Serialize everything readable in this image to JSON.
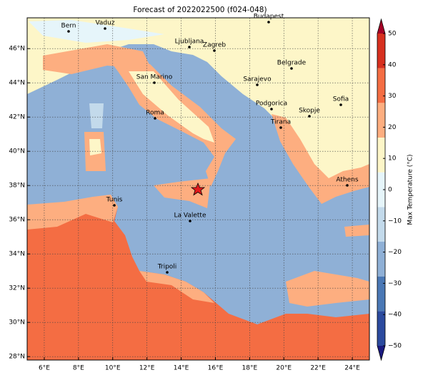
{
  "map": {
    "title": "Forecast of 2022022500 (f024-048)",
    "xlim": [
      5,
      25
    ],
    "ylim": [
      27.8,
      47.8
    ],
    "xticks": [
      {
        "value": 6,
        "label": "6°E"
      },
      {
        "value": 8,
        "label": "8°E"
      },
      {
        "value": 10,
        "label": "10°E"
      },
      {
        "value": 12,
        "label": "12°E"
      },
      {
        "value": 14,
        "label": "14°E"
      },
      {
        "value": 16,
        "label": "16°E"
      },
      {
        "value": 18,
        "label": "18°E"
      },
      {
        "value": 20,
        "label": "20°E"
      },
      {
        "value": 22,
        "label": "22°E"
      },
      {
        "value": 24,
        "label": "24°E"
      }
    ],
    "yticks": [
      {
        "value": 28,
        "label": "28°N"
      },
      {
        "value": 30,
        "label": "30°N"
      },
      {
        "value": 32,
        "label": "32°N"
      },
      {
        "value": 34,
        "label": "34°N"
      },
      {
        "value": 36,
        "label": "36°N"
      },
      {
        "value": 38,
        "label": "38°N"
      },
      {
        "value": 40,
        "label": "40°N"
      },
      {
        "value": 42,
        "label": "42°N"
      },
      {
        "value": 44,
        "label": "44°N"
      },
      {
        "value": 46,
        "label": "46°N"
      }
    ],
    "cities": [
      "Bern",
      "Vaduz",
      "Budapest",
      "Ljubljana",
      "Zagreb",
      "Belgrade",
      "San Marino",
      "Sarajevo",
      "Sofia",
      "Podgorica",
      "Skopje",
      "Roma",
      "Tirana",
      "Athens",
      "Tunis",
      "La Valette",
      "Tripoli"
    ],
    "colorbar": {
      "label": "Max Temperature (°C)",
      "lim": [
        -50,
        50
      ],
      "ticks": [
        50,
        40,
        30,
        20,
        10,
        0,
        {
          "value": -10,
          "label": "−10"
        },
        {
          "value": -20,
          "label": "−20"
        },
        {
          "value": -30,
          "label": "−30"
        },
        {
          "value": -40,
          "label": "−40"
        },
        {
          "value": -50,
          "label": "−50"
        }
      ],
      "colors": [
        "#1a1a80",
        "#2b4a9e",
        "#4a78b5",
        "#8fb0d6",
        "#c3daeb",
        "#e6f5fa",
        "#fdf6c8",
        "#fdae80",
        "#f46d43",
        "#d7301f",
        "#a50026"
      ]
    }
  }
}
